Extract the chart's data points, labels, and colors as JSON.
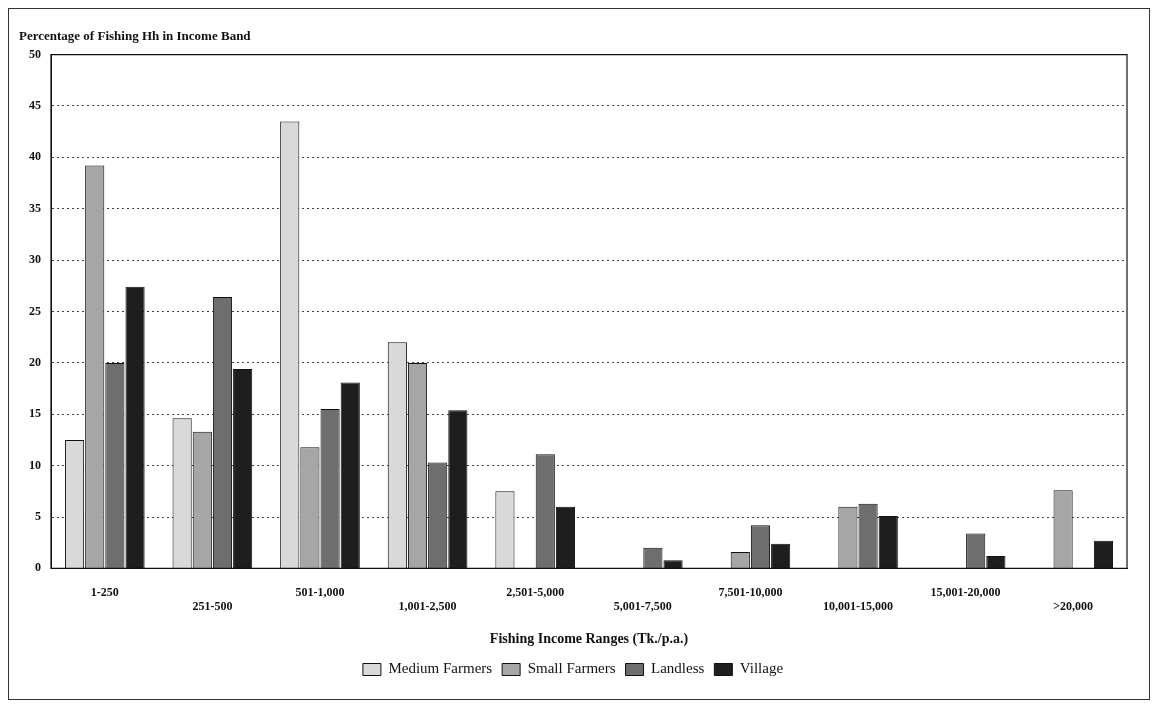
{
  "chart_data": {
    "type": "bar",
    "ylabel": "Percentage of Fishing Hh in Income Band",
    "xlabel": "Fishing Income Ranges (Tk./p.a.)",
    "categories": [
      "1-250",
      "251-500",
      "501-1,000",
      "1,001-2,500",
      "2,501-5,000",
      "5,001-7,500",
      "7,501-10,000",
      "10,001-15,000",
      "15,001-20,000",
      ">20,000"
    ],
    "series": [
      {
        "name": "Medium Farmers",
        "color": "#d9d9d9",
        "values": [
          12.5,
          14.6,
          43.5,
          22,
          7.5,
          null,
          null,
          null,
          null,
          null
        ]
      },
      {
        "name": "Small Farmers",
        "color": "#a6a6a6",
        "values": [
          39.2,
          13.3,
          11.8,
          20,
          null,
          null,
          1.6,
          6,
          null,
          7.6
        ]
      },
      {
        "name": "Landless",
        "color": "#6e6e6e",
        "values": [
          20,
          26.4,
          15.5,
          10.3,
          11.1,
          2,
          4.2,
          6.3,
          3.4,
          null
        ]
      },
      {
        "name": "Village",
        "color": "#1e1e1e",
        "values": [
          27.4,
          19.4,
          18.1,
          15.4,
          6,
          0.8,
          2.4,
          5.1,
          1.2,
          2.7
        ]
      }
    ],
    "ylim": [
      0,
      50
    ],
    "yticks": [
      0,
      5,
      10,
      15,
      20,
      25,
      30,
      35,
      40,
      45,
      50
    ],
    "grid": "y",
    "legend": "bottom"
  }
}
